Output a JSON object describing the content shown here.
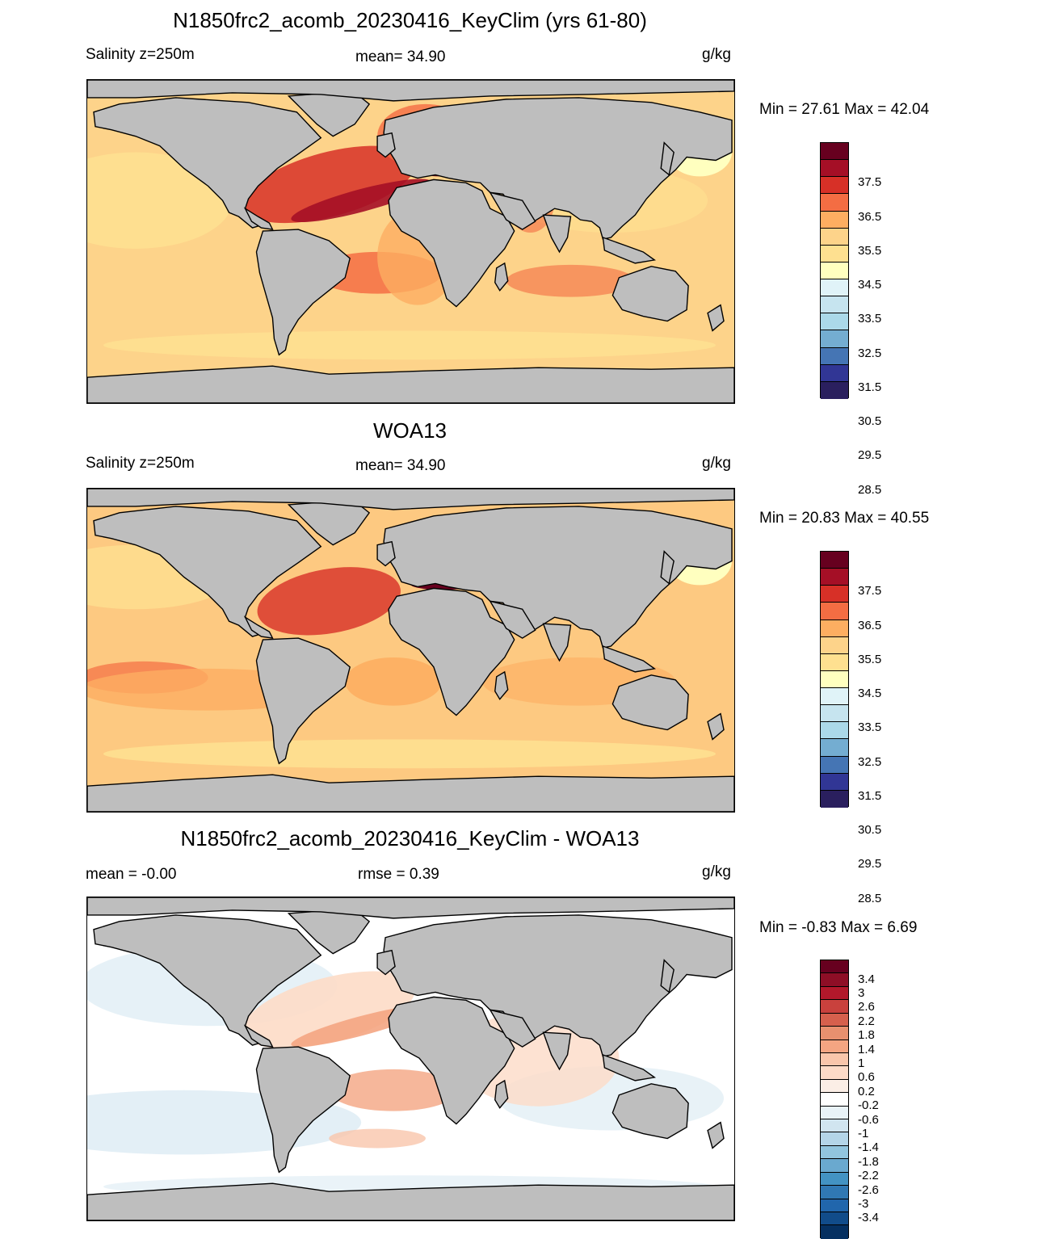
{
  "panels": [
    {
      "title": "N1850frc2_acomb_20230416_KeyClim (yrs 61-80)",
      "left_label": "Salinity z=250m",
      "center_label": "mean=  34.90",
      "units": "g/kg",
      "minmax": "Min =  27.61 Max =  42.04",
      "ocean_color": "#fdd38a",
      "colorbar": {
        "colors": [
          "#67001f",
          "#a50f26",
          "#d73027",
          "#f46d43",
          "#fdae61",
          "#fdd38a",
          "#fee090",
          "#ffffbf",
          "#e0f3f8",
          "#c6e4ef",
          "#abd9e9",
          "#74add1",
          "#4575b4",
          "#313695",
          "#2a1f5e"
        ],
        "labels": [
          "37.5",
          "36.5",
          "35.5",
          "34.5",
          "33.5",
          "32.5",
          "31.5",
          "30.5",
          "29.5",
          "28.5"
        ]
      }
    },
    {
      "title": "WOA13",
      "left_label": "Salinity z=250m",
      "center_label": "mean=  34.90",
      "units": "g/kg",
      "minmax": "Min =  20.83 Max =  40.55",
      "ocean_color": "#fdc981",
      "colorbar": {
        "colors": [
          "#67001f",
          "#a50f26",
          "#d73027",
          "#f46d43",
          "#fdae61",
          "#fdd38a",
          "#fee090",
          "#ffffbf",
          "#e0f3f8",
          "#c6e4ef",
          "#abd9e9",
          "#74add1",
          "#4575b4",
          "#313695",
          "#2a1f5e"
        ],
        "labels": [
          "37.5",
          "36.5",
          "35.5",
          "34.5",
          "33.5",
          "32.5",
          "31.5",
          "30.5",
          "29.5",
          "28.5"
        ]
      }
    },
    {
      "title": "N1850frc2_acomb_20230416_KeyClim - WOA13",
      "left_label": "mean =  -0.00",
      "center_label": "rmse =   0.39",
      "units": "g/kg",
      "minmax": "Min =  -0.83 Max =   6.69",
      "ocean_color": "#ffffff",
      "colorbar": {
        "colors": [
          "#67001f",
          "#8e0e26",
          "#b2182b",
          "#c9413d",
          "#d6604d",
          "#e8906f",
          "#f4a582",
          "#f9c6ab",
          "#fddbc7",
          "#fbeee6",
          "#ffffff",
          "#e8f2f7",
          "#d1e5f0",
          "#b4d5e8",
          "#92c5de",
          "#6aa9cf",
          "#4393c3",
          "#3078b3",
          "#2166ac",
          "#114c8a",
          "#053061"
        ],
        "labels": [
          "3.4",
          "3",
          "2.6",
          "2.2",
          "1.8",
          "1.4",
          "1",
          "0.6",
          "0.2",
          "-0.2",
          "-0.6",
          "-1",
          "-1.4",
          "-1.8",
          "-2.2",
          "-2.6",
          "-3",
          "-3.4"
        ]
      }
    }
  ]
}
